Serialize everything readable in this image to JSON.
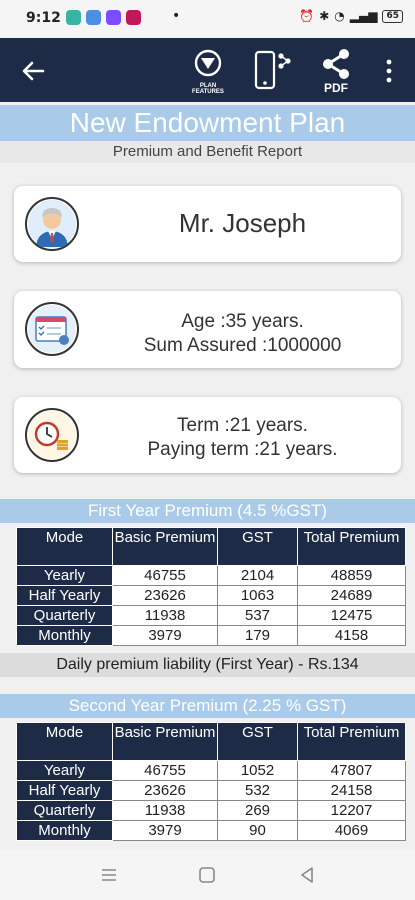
{
  "status": {
    "time": "9:12",
    "battery": "65"
  },
  "colors": {
    "app_bar": "#1e2b47",
    "accent_band": "#a9cbe9",
    "table_header": "#1e2b47"
  },
  "toolbar": {
    "plan_features_label": "PLAN FEATURES",
    "pdf_label": "PDF"
  },
  "header": {
    "title": "New Endowment Plan",
    "subtitle": "Premium and Benefit Report"
  },
  "customer": {
    "name": "Mr. Joseph",
    "age": "Age :35 years.",
    "sum_assured": "Sum Assured :1000000",
    "term": "Term :21 years.",
    "paying_term": "Paying term :21 years."
  },
  "columns": [
    "Mode",
    "Basic Premium",
    "GST",
    "Total Premium"
  ],
  "first_year": {
    "title": "First Year Premium (4.5 %GST)",
    "rows": [
      [
        "Yearly",
        "46755",
        "2104",
        "48859"
      ],
      [
        "Half Yearly",
        "23626",
        "1063",
        "24689"
      ],
      [
        "Quarterly",
        "11938",
        "537",
        "12475"
      ],
      [
        "Monthly",
        "3979",
        "179",
        "4158"
      ]
    ],
    "daily_liability": "Daily premium liability (First Year) - Rs.134"
  },
  "second_year": {
    "title": "Second Year Premium (2.25 % GST)",
    "rows": [
      [
        "Yearly",
        "46755",
        "1052",
        "47807"
      ],
      [
        "Half Yearly",
        "23626",
        "532",
        "24158"
      ],
      [
        "Quarterly",
        "11938",
        "269",
        "12207"
      ],
      [
        "Monthly",
        "3979",
        "90",
        "4069"
      ]
    ]
  }
}
